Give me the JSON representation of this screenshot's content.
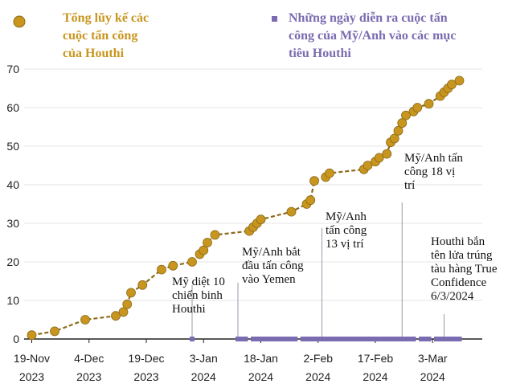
{
  "colors": {
    "cumulative": "#C8961E",
    "cumulative_line": "#8B6A1A",
    "strikes": "#7B6BB0",
    "axis": "#222222",
    "grid": "#e6e6e6"
  },
  "legend": {
    "cumulative_lines": [
      "Tổng lũy kế các",
      "cuộc tấn công",
      "của Houthi"
    ],
    "strikes_lines": [
      "Những ngày diễn ra cuộc tấn",
      "công của Mỹ/Anh vào các mục",
      "tiêu Houthi"
    ]
  },
  "chart_data": {
    "type": "line",
    "xlim": [
      "2023-11-17",
      "2024-03-16"
    ],
    "ylim": [
      0,
      70
    ],
    "yticks": [
      0,
      10,
      20,
      30,
      40,
      50,
      60,
      70
    ],
    "xticks": [
      {
        "date": "2023-11-19",
        "line1": "19-Nov",
        "line2": "2023"
      },
      {
        "date": "2023-12-04",
        "line1": "4-Dec",
        "line2": "2023"
      },
      {
        "date": "2023-12-19",
        "line1": "19-Dec",
        "line2": "2023"
      },
      {
        "date": "2024-01-03",
        "line1": "3-Jan",
        "line2": "2024"
      },
      {
        "date": "2024-01-18",
        "line1": "18-Jan",
        "line2": "2024"
      },
      {
        "date": "2024-02-02",
        "line1": "2-Feb",
        "line2": "2024"
      },
      {
        "date": "2024-02-17",
        "line1": "17-Feb",
        "line2": "2024"
      },
      {
        "date": "2024-03-03",
        "line1": "3-Mar",
        "line2": "2024"
      }
    ],
    "series": [
      {
        "name": "Tổng lũy kế các cuộc tấn công của Houthi",
        "points": [
          {
            "x": "2023-11-19",
            "y": 1
          },
          {
            "x": "2023-11-25",
            "y": 2
          },
          {
            "x": "2023-12-03",
            "y": 5
          },
          {
            "x": "2023-12-11",
            "y": 6
          },
          {
            "x": "2023-12-13",
            "y": 7
          },
          {
            "x": "2023-12-14",
            "y": 9
          },
          {
            "x": "2023-12-15",
            "y": 12
          },
          {
            "x": "2023-12-18",
            "y": 14
          },
          {
            "x": "2023-12-23",
            "y": 18
          },
          {
            "x": "2023-12-26",
            "y": 19
          },
          {
            "x": "2023-12-31",
            "y": 20
          },
          {
            "x": "2024-01-02",
            "y": 22
          },
          {
            "x": "2024-01-03",
            "y": 23
          },
          {
            "x": "2024-01-04",
            "y": 25
          },
          {
            "x": "2024-01-06",
            "y": 27
          },
          {
            "x": "2024-01-15",
            "y": 28
          },
          {
            "x": "2024-01-16",
            "y": 29
          },
          {
            "x": "2024-01-17",
            "y": 30
          },
          {
            "x": "2024-01-18",
            "y": 31
          },
          {
            "x": "2024-01-26",
            "y": 33
          },
          {
            "x": "2024-01-30",
            "y": 35
          },
          {
            "x": "2024-01-31",
            "y": 36
          },
          {
            "x": "2024-02-01",
            "y": 41
          },
          {
            "x": "2024-02-04",
            "y": 42
          },
          {
            "x": "2024-02-05",
            "y": 43
          },
          {
            "x": "2024-02-14",
            "y": 44
          },
          {
            "x": "2024-02-15",
            "y": 45
          },
          {
            "x": "2024-02-17",
            "y": 46
          },
          {
            "x": "2024-02-18",
            "y": 47
          },
          {
            "x": "2024-02-20",
            "y": 48
          },
          {
            "x": "2024-02-21",
            "y": 51
          },
          {
            "x": "2024-02-22",
            "y": 52
          },
          {
            "x": "2024-02-23",
            "y": 54
          },
          {
            "x": "2024-02-24",
            "y": 56
          },
          {
            "x": "2024-02-25",
            "y": 58
          },
          {
            "x": "2024-02-27",
            "y": 59
          },
          {
            "x": "2024-02-28",
            "y": 60
          },
          {
            "x": "2024-03-02",
            "y": 61
          },
          {
            "x": "2024-03-05",
            "y": 63
          },
          {
            "x": "2024-03-06",
            "y": 64
          },
          {
            "x": "2024-03-07",
            "y": 65
          },
          {
            "x": "2024-03-08",
            "y": 66
          },
          {
            "x": "2024-03-10",
            "y": 67
          }
        ]
      },
      {
        "name": "Những ngày diễn ra cuộc tấn công của Mỹ/Anh vào các mục tiêu Houthi",
        "dates": [
          "2023-12-31",
          "2024-01-12",
          "2024-01-13",
          "2024-01-14",
          "2024-01-16",
          "2024-01-17",
          "2024-01-18",
          "2024-01-19",
          "2024-01-20",
          "2024-01-21",
          "2024-01-22",
          "2024-01-23",
          "2024-01-24",
          "2024-01-25",
          "2024-01-26",
          "2024-01-27",
          "2024-01-29",
          "2024-01-30",
          "2024-01-31",
          "2024-02-01",
          "2024-02-02",
          "2024-02-03",
          "2024-02-04",
          "2024-02-05",
          "2024-02-06",
          "2024-02-07",
          "2024-02-08",
          "2024-02-09",
          "2024-02-10",
          "2024-02-11",
          "2024-02-12",
          "2024-02-13",
          "2024-02-14",
          "2024-02-15",
          "2024-02-16",
          "2024-02-17",
          "2024-02-18",
          "2024-02-19",
          "2024-02-20",
          "2024-02-21",
          "2024-02-22",
          "2024-02-23",
          "2024-02-24",
          "2024-02-25",
          "2024-02-26",
          "2024-02-27",
          "2024-02-29",
          "2024-03-01",
          "2024-03-02",
          "2024-03-04",
          "2024-03-05",
          "2024-03-06",
          "2024-03-07",
          "2024-03-08",
          "2024-03-09",
          "2024-03-10"
        ]
      }
    ],
    "annotations": [
      {
        "id": "us-kill-10",
        "lines": [
          "Mỹ diệt 10",
          "chiến binh",
          "Houthi"
        ],
        "date": "2023-12-31"
      },
      {
        "id": "yemen-start",
        "lines": [
          "Mỹ/Anh bắt",
          "đầu tấn công",
          "vào Yemen"
        ],
        "date": "2024-01-12"
      },
      {
        "id": "strike-13",
        "lines": [
          "Mỹ/Anh",
          "tấn công",
          "13 vị trí"
        ],
        "date": "2024-02-03"
      },
      {
        "id": "strike-18",
        "lines": [
          "Mỹ/Anh tấn",
          "công 18 vị",
          "trí"
        ],
        "date": "2024-02-24"
      },
      {
        "id": "true-confidence",
        "lines": [
          "Houthi bắn",
          "tên lửa trúng",
          "tàu hàng True",
          "Confidence",
          "6/3/2024"
        ],
        "date": "2024-03-06"
      }
    ]
  }
}
